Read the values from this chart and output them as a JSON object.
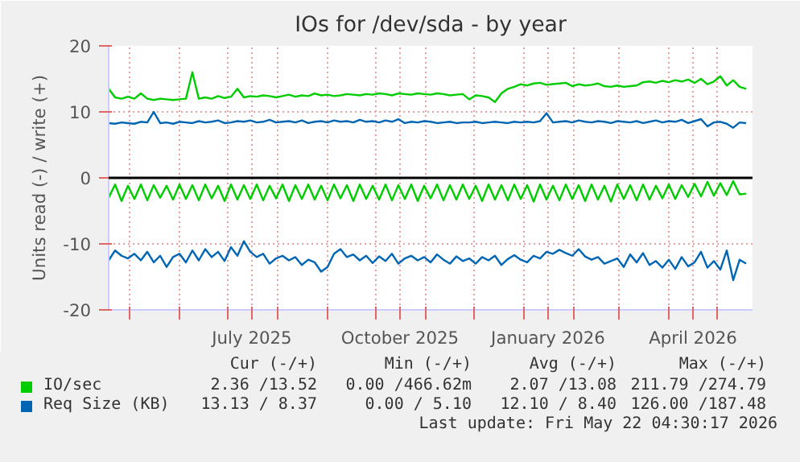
{
  "chart_data": {
    "type": "line",
    "title": "IOs for /dev/sda - by year",
    "ylabel": "Units read (-) / write (+)",
    "legend": "bottom",
    "grid": true,
    "line_style": "solid",
    "x": [
      "2025-04-18",
      "2025-04-22",
      "2025-04-26",
      "2025-04-30",
      "2025-05-04",
      "2025-05-08",
      "2025-05-12",
      "2025-05-16",
      "2025-05-20",
      "2025-05-24",
      "2025-05-28",
      "2025-06-01",
      "2025-06-05",
      "2025-06-09",
      "2025-06-13",
      "2025-06-17",
      "2025-06-21",
      "2025-06-25",
      "2025-06-29",
      "2025-07-03",
      "2025-07-07",
      "2025-07-11",
      "2025-07-15",
      "2025-07-19",
      "2025-07-23",
      "2025-07-27",
      "2025-07-31",
      "2025-08-04",
      "2025-08-08",
      "2025-08-12",
      "2025-08-16",
      "2025-08-20",
      "2025-08-24",
      "2025-08-28",
      "2025-09-01",
      "2025-09-05",
      "2025-09-09",
      "2025-09-13",
      "2025-09-17",
      "2025-09-21",
      "2025-09-25",
      "2025-09-29",
      "2025-10-03",
      "2025-10-07",
      "2025-10-11",
      "2025-10-15",
      "2025-10-19",
      "2025-10-23",
      "2025-10-27",
      "2025-10-31",
      "2025-11-04",
      "2025-11-08",
      "2025-11-12",
      "2025-11-16",
      "2025-11-20",
      "2025-11-24",
      "2025-11-28",
      "2025-12-02",
      "2025-12-06",
      "2025-12-10",
      "2025-12-14",
      "2025-12-18",
      "2025-12-22",
      "2025-12-26",
      "2025-12-30",
      "2026-01-03",
      "2026-01-07",
      "2026-01-11",
      "2026-01-15",
      "2026-01-19",
      "2026-01-23",
      "2026-01-27",
      "2026-01-31",
      "2026-02-04",
      "2026-02-08",
      "2026-02-12",
      "2026-02-16",
      "2026-02-20",
      "2026-02-24",
      "2026-02-28",
      "2026-03-04",
      "2026-03-08",
      "2026-03-12",
      "2026-03-16",
      "2026-03-20",
      "2026-03-24",
      "2026-03-28",
      "2026-04-01",
      "2026-04-05",
      "2026-04-09",
      "2026-04-13",
      "2026-04-17",
      "2026-04-21",
      "2026-04-25",
      "2026-04-29",
      "2026-05-03",
      "2026-05-07",
      "2026-05-11",
      "2026-05-15",
      "2026-05-19"
    ],
    "xlim": [
      "2025-04-18",
      "2026-05-23"
    ],
    "xticks": [
      {
        "value": "2025-05-01",
        "label": null
      },
      {
        "value": "2025-06-01",
        "label": null
      },
      {
        "value": "2025-07-01",
        "label": null
      },
      {
        "value": "2025-07-16",
        "label": "July 2025"
      },
      {
        "value": "2025-08-01",
        "label": null
      },
      {
        "value": "2025-09-01",
        "label": null
      },
      {
        "value": "2025-10-01",
        "label": null
      },
      {
        "value": "2025-10-16",
        "label": "October 2025"
      },
      {
        "value": "2025-11-01",
        "label": null
      },
      {
        "value": "2025-12-01",
        "label": null
      },
      {
        "value": "2026-01-01",
        "label": null
      },
      {
        "value": "2026-01-16",
        "label": "January 2026"
      },
      {
        "value": "2026-02-01",
        "label": null
      },
      {
        "value": "2026-03-01",
        "label": null
      },
      {
        "value": "2026-04-01",
        "label": null
      },
      {
        "value": "2026-04-16",
        "label": "April 2026"
      },
      {
        "value": "2026-05-01",
        "label": null
      }
    ],
    "ylim": [
      -20,
      20
    ],
    "yticks": [
      -20,
      -10,
      0,
      10,
      20
    ],
    "ref_lines": [
      {
        "axis": "y",
        "value": 0,
        "label": null,
        "color": "#000000"
      }
    ],
    "series": [
      {
        "name": "IO/sec",
        "color": "#00cc00",
        "values": [
          13.5,
          12.2,
          12.0,
          12.3,
          12.0,
          12.8,
          12.0,
          11.8,
          12.0,
          11.9,
          11.8,
          11.9,
          12.0,
          16.0,
          12.0,
          12.2,
          12.0,
          12.4,
          12.1,
          12.3,
          13.5,
          12.2,
          12.4,
          12.3,
          12.5,
          12.4,
          12.2,
          12.4,
          12.6,
          12.3,
          12.5,
          12.4,
          12.8,
          12.5,
          12.6,
          12.4,
          12.5,
          12.7,
          12.6,
          12.5,
          12.7,
          12.6,
          12.8,
          12.7,
          12.5,
          12.8,
          12.7,
          12.6,
          12.8,
          12.7,
          12.6,
          12.8,
          12.7,
          12.5,
          12.6,
          12.7,
          11.9,
          12.5,
          12.4,
          12.2,
          11.5,
          12.8,
          13.5,
          13.8,
          14.2,
          14.0,
          14.3,
          14.4,
          14.1,
          14.2,
          14.3,
          14.4,
          13.9,
          14.2,
          14.0,
          14.1,
          14.3,
          13.9,
          13.8,
          14.0,
          13.8,
          13.9,
          14.0,
          14.5,
          14.6,
          14.4,
          14.7,
          14.5,
          14.8,
          14.6,
          14.9,
          14.4,
          15.0,
          14.2,
          14.6,
          15.4,
          14.0,
          14.8,
          13.8,
          13.5
        ]
      },
      {
        "color": "#00cc00",
        "values": [
          -3.0,
          -1.0,
          -3.5,
          -1.2,
          -3.2,
          -1.0,
          -3.4,
          -1.1,
          -3.0,
          -1.2,
          -3.3,
          -1.0,
          -3.2,
          -1.1,
          -3.4,
          -1.0,
          -3.1,
          -1.2,
          -3.5,
          -1.0,
          -3.3,
          -1.1,
          -3.2,
          -1.0,
          -3.4,
          -1.2,
          -3.1,
          -1.0,
          -3.5,
          -1.1,
          -3.2,
          -1.0,
          -3.3,
          -1.2,
          -3.4,
          -1.0,
          -3.1,
          -1.1,
          -3.5,
          -1.0,
          -3.2,
          -1.2,
          -3.3,
          -1.0,
          -3.4,
          -1.1,
          -3.2,
          -1.0,
          -3.5,
          -1.2,
          -3.1,
          -1.0,
          -3.4,
          -1.1,
          -3.3,
          -1.0,
          -3.2,
          -1.2,
          -3.5,
          -1.0,
          -3.3,
          -1.1,
          -3.4,
          -1.0,
          -3.2,
          -1.1,
          -3.6,
          -1.0,
          -3.3,
          -1.2,
          -3.4,
          -1.0,
          -3.2,
          -1.1,
          -3.5,
          -1.0,
          -3.3,
          -1.2,
          -3.6,
          -1.0,
          -3.2,
          -1.1,
          -3.4,
          -1.0,
          -3.3,
          -1.2,
          -3.1,
          -1.0,
          -3.2,
          -1.1,
          -2.9,
          -0.9,
          -2.8,
          -0.6,
          -2.7,
          -0.8,
          -2.6,
          -0.5,
          -2.5,
          -2.4
        ]
      },
      {
        "name": "Req Size (KB)",
        "color": "#0066b3",
        "values": [
          8.3,
          8.2,
          8.4,
          8.3,
          8.2,
          8.5,
          8.4,
          10.0,
          8.3,
          8.4,
          8.2,
          8.5,
          8.4,
          8.3,
          8.6,
          8.4,
          8.5,
          8.7,
          8.3,
          8.4,
          8.6,
          8.5,
          8.7,
          8.4,
          8.5,
          8.8,
          8.4,
          8.5,
          8.6,
          8.4,
          8.7,
          8.3,
          8.5,
          8.6,
          8.4,
          8.7,
          8.5,
          8.6,
          8.4,
          8.8,
          8.5,
          8.6,
          8.4,
          8.7,
          8.5,
          8.9,
          8.3,
          8.5,
          8.4,
          8.6,
          8.5,
          8.3,
          8.4,
          8.5,
          8.3,
          8.4,
          8.4,
          8.5,
          8.3,
          8.4,
          8.5,
          8.4,
          8.3,
          8.5,
          8.4,
          8.5,
          8.4,
          8.6,
          9.8,
          8.4,
          8.5,
          8.6,
          8.4,
          8.7,
          8.5,
          8.4,
          8.6,
          8.5,
          8.3,
          8.6,
          8.5,
          8.4,
          8.6,
          8.3,
          8.5,
          8.7,
          8.4,
          8.6,
          8.5,
          8.8,
          8.3,
          8.6,
          8.9,
          7.8,
          8.4,
          8.5,
          8.2,
          7.6,
          8.4,
          8.3
        ]
      },
      {
        "color": "#0066b3",
        "values": [
          -12.5,
          -11.0,
          -11.8,
          -12.2,
          -11.5,
          -12.5,
          -11.2,
          -12.8,
          -11.8,
          -13.5,
          -12.0,
          -11.5,
          -12.8,
          -11.0,
          -12.5,
          -10.8,
          -12.0,
          -11.2,
          -12.6,
          -10.5,
          -11.8,
          -9.6,
          -11.2,
          -12.0,
          -11.5,
          -13.0,
          -12.2,
          -11.8,
          -12.5,
          -12.0,
          -13.2,
          -12.4,
          -12.8,
          -14.2,
          -13.5,
          -11.5,
          -10.8,
          -12.0,
          -11.6,
          -12.5,
          -11.8,
          -12.9,
          -11.9,
          -12.6,
          -11.5,
          -13.0,
          -12.2,
          -11.8,
          -12.5,
          -12.0,
          -12.8,
          -11.6,
          -12.4,
          -13.0,
          -11.9,
          -12.6,
          -12.2,
          -13.0,
          -12.0,
          -12.5,
          -11.8,
          -13.2,
          -12.3,
          -11.7,
          -12.4,
          -12.8,
          -11.8,
          -12.2,
          -11.2,
          -11.5,
          -10.9,
          -11.4,
          -11.8,
          -10.8,
          -11.9,
          -12.4,
          -12.0,
          -13.0,
          -12.6,
          -12.2,
          -13.5,
          -11.6,
          -12.8,
          -11.4,
          -13.2,
          -12.6,
          -13.6,
          -12.4,
          -13.8,
          -12.0,
          -13.4,
          -12.8,
          -11.2,
          -13.6,
          -12.6,
          -13.9,
          -11.0,
          -15.5,
          -12.4,
          -13.0
        ]
      }
    ],
    "annotations": [
      "Cur (-/+)",
      "Min (-/+)",
      "Avg (-/+)",
      "Max (-/+)",
      "2.36 /13.52",
      "0.00 /466.62m",
      "2.07 /13.08",
      "211.79 /274.79",
      "13.13 / 8.37",
      "0.00 / 5.10",
      "12.10 / 8.40",
      "126.00 /187.48",
      "Last update: Fri May 22 04:30:17 2026"
    ]
  }
}
